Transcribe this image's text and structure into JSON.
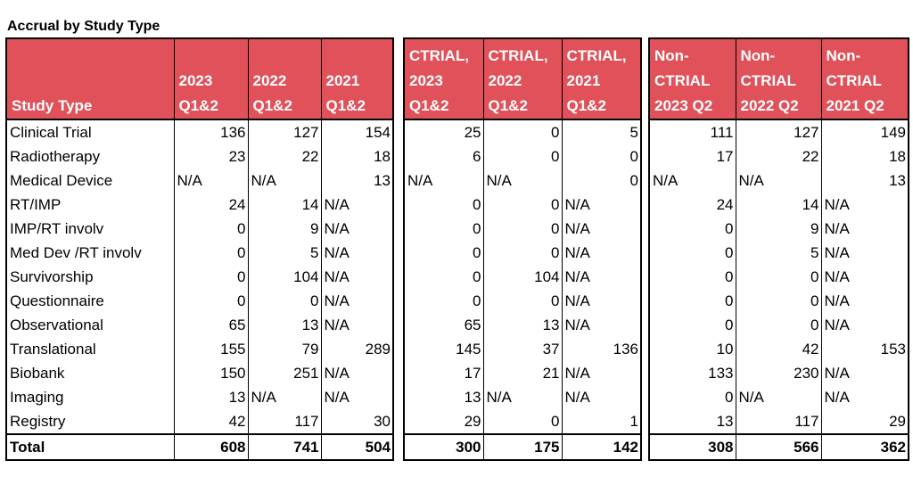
{
  "title": "Accrual by Study Type",
  "study_type_header": "Study Type",
  "blocks": [
    {
      "headers": [
        "2023 Q1&2",
        "2022 Q1&2",
        "2021 Q1&2"
      ],
      "col_key": "main"
    },
    {
      "headers": [
        "CTRIAL, 2023 Q1&2",
        "CTRIAL, 2022 Q1&2",
        "CTRIAL, 2021 Q1&2"
      ],
      "col_key": "ctrial"
    },
    {
      "headers": [
        "Non-CTRIAL 2023 Q2",
        "Non-CTRIAL 2022 Q2",
        "Non-CTRIAL 2021 Q2"
      ],
      "col_key": "nonctrial"
    }
  ],
  "rows": [
    {
      "label": "Clinical Trial",
      "main": [
        "136",
        "127",
        "154"
      ],
      "ctrial": [
        "25",
        "0",
        "5"
      ],
      "nonctrial": [
        "111",
        "127",
        "149"
      ]
    },
    {
      "label": "Radiotherapy",
      "main": [
        "23",
        "22",
        "18"
      ],
      "ctrial": [
        "6",
        "0",
        "0"
      ],
      "nonctrial": [
        "17",
        "22",
        "18"
      ]
    },
    {
      "label": "Medical Device",
      "main": [
        "N/A",
        "N/A",
        "13"
      ],
      "ctrial": [
        "N/A",
        "N/A",
        "0"
      ],
      "nonctrial": [
        "N/A",
        "N/A",
        "13"
      ]
    },
    {
      "label": "RT/IMP",
      "main": [
        "24",
        "14",
        "N/A"
      ],
      "ctrial": [
        "0",
        "0",
        "N/A"
      ],
      "nonctrial": [
        "24",
        "14",
        "N/A"
      ]
    },
    {
      "label": "IMP/RT involv",
      "main": [
        "0",
        "9",
        "N/A"
      ],
      "ctrial": [
        "0",
        "0",
        "N/A"
      ],
      "nonctrial": [
        "0",
        "9",
        "N/A"
      ]
    },
    {
      "label": "Med Dev /RT involv",
      "main": [
        "0",
        "5",
        "N/A"
      ],
      "ctrial": [
        "0",
        "0",
        "N/A"
      ],
      "nonctrial": [
        "0",
        "5",
        "N/A"
      ]
    },
    {
      "label": "Survivorship",
      "main": [
        "0",
        "104",
        "N/A"
      ],
      "ctrial": [
        "0",
        "104",
        "N/A"
      ],
      "nonctrial": [
        "0",
        "0",
        "N/A"
      ]
    },
    {
      "label": "Questionnaire",
      "main": [
        "0",
        "0",
        "N/A"
      ],
      "ctrial": [
        "0",
        "0",
        "N/A"
      ],
      "nonctrial": [
        "0",
        "0",
        "N/A"
      ]
    },
    {
      "label": "Observational",
      "main": [
        "65",
        "13",
        "N/A"
      ],
      "ctrial": [
        "65",
        "13",
        "N/A"
      ],
      "nonctrial": [
        "0",
        "0",
        "N/A"
      ]
    },
    {
      "label": "Translational",
      "main": [
        "155",
        "79",
        "289"
      ],
      "ctrial": [
        "145",
        "37",
        "136"
      ],
      "nonctrial": [
        "10",
        "42",
        "153"
      ]
    },
    {
      "label": "Biobank",
      "main": [
        "150",
        "251",
        "N/A"
      ],
      "ctrial": [
        "17",
        "21",
        "N/A"
      ],
      "nonctrial": [
        "133",
        "230",
        "N/A"
      ]
    },
    {
      "label": "Imaging",
      "main": [
        "13",
        "N/A",
        "N/A"
      ],
      "ctrial": [
        "13",
        "N/A",
        "N/A"
      ],
      "nonctrial": [
        "0",
        "N/A",
        "N/A"
      ]
    },
    {
      "label": "Registry",
      "main": [
        "42",
        "117",
        "30"
      ],
      "ctrial": [
        "29",
        "0",
        "1"
      ],
      "nonctrial": [
        "13",
        "117",
        "29"
      ]
    }
  ],
  "total": {
    "label": "Total",
    "main": [
      "608",
      "741",
      "504"
    ],
    "ctrial": [
      "300",
      "175",
      "142"
    ],
    "nonctrial": [
      "308",
      "566",
      "362"
    ]
  },
  "colors": {
    "header_bg": "#e0515a",
    "header_text": "#ffffff",
    "border": "#000000"
  }
}
